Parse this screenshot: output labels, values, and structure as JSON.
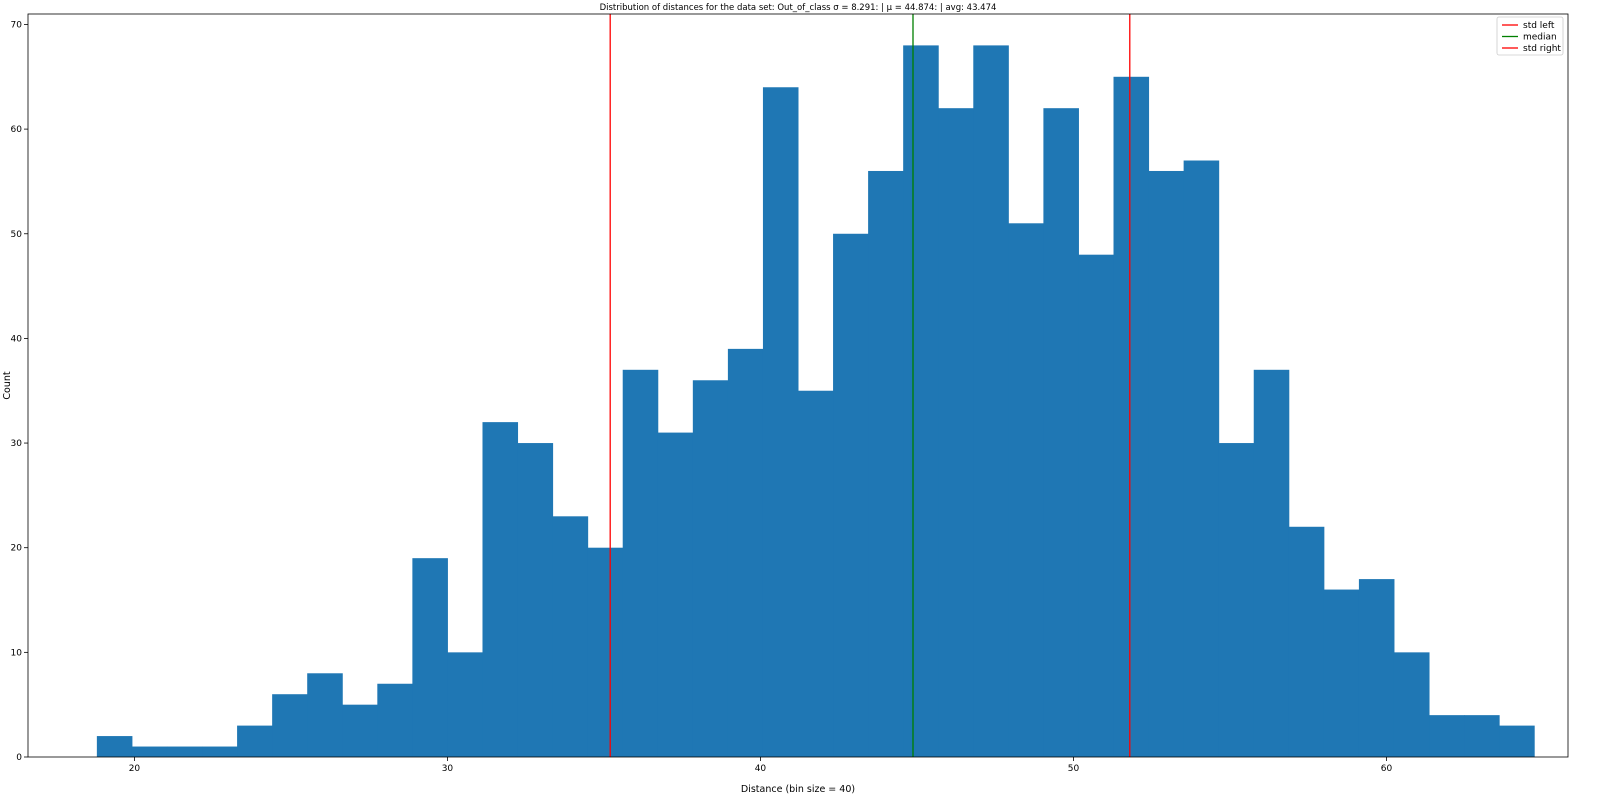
{
  "chart_data": {
    "type": "bar",
    "title": "Distribution of distances for the data set: Out_of_class σ = 8.291:  | μ = 44.874:  | avg: 43.474",
    "xlabel": "Distance (bin size = 40)",
    "ylabel": "Count",
    "xlim": [
      16.6,
      65.8
    ],
    "ylim": [
      0,
      71
    ],
    "xticks": [
      20,
      30,
      40,
      50,
      60
    ],
    "yticks": [
      0,
      10,
      20,
      30,
      40,
      50,
      60,
      70
    ],
    "bin_start": 18.8,
    "bin_width": 1.12,
    "values": [
      2,
      1,
      1,
      1,
      3,
      6,
      8,
      5,
      7,
      19,
      10,
      32,
      30,
      23,
      20,
      37,
      31,
      36,
      39,
      64,
      35,
      50,
      56,
      68,
      62,
      68,
      51,
      62,
      48,
      65,
      56,
      57,
      30,
      37,
      22,
      16,
      17,
      10,
      4,
      4,
      3
    ],
    "bar_color": "#1f77b4",
    "vlines": [
      {
        "name": "std left",
        "x": 35.2,
        "color": "#ff0000"
      },
      {
        "name": "median",
        "x": 44.874,
        "color": "#008000"
      },
      {
        "name": "std right",
        "x": 51.8,
        "color": "#ff0000"
      }
    ],
    "grid": false,
    "legend_position": "top-right"
  }
}
